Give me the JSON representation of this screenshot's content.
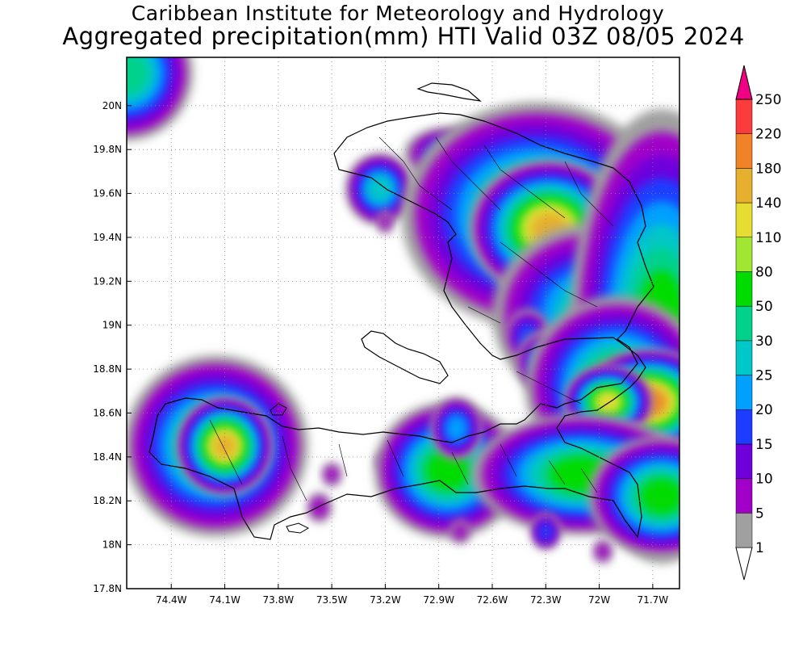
{
  "title": "Caribbean Institute for Meteorology and Hydrology",
  "subtitle": "Aggregated precipitation(mm) HTI Valid 03Z 08/05 2024",
  "map": {
    "lon_range": [
      -74.65,
      -71.55
    ],
    "lat_range": [
      17.8,
      20.22
    ],
    "x_ticks": [
      {
        "value": -74.4,
        "label": "74.4W"
      },
      {
        "value": -74.1,
        "label": "74.1W"
      },
      {
        "value": -73.8,
        "label": "73.8W"
      },
      {
        "value": -73.5,
        "label": "73.5W"
      },
      {
        "value": -73.2,
        "label": "73.2W"
      },
      {
        "value": -72.9,
        "label": "72.9W"
      },
      {
        "value": -72.6,
        "label": "72.6W"
      },
      {
        "value": -72.3,
        "label": "72.3W"
      },
      {
        "value": -72.0,
        "label": "72W"
      },
      {
        "value": -71.7,
        "label": "71.7W"
      }
    ],
    "y_ticks": [
      {
        "value": 17.8,
        "label": "17.8N"
      },
      {
        "value": 18.0,
        "label": "18N"
      },
      {
        "value": 18.2,
        "label": "18.2N"
      },
      {
        "value": 18.4,
        "label": "18.4N"
      },
      {
        "value": 18.6,
        "label": "18.6N"
      },
      {
        "value": 18.8,
        "label": "18.8N"
      },
      {
        "value": 19.0,
        "label": "19N"
      },
      {
        "value": 19.2,
        "label": "19.2N"
      },
      {
        "value": 19.4,
        "label": "19.4N"
      },
      {
        "value": 19.6,
        "label": "19.6N"
      },
      {
        "value": 19.8,
        "label": "19.8N"
      },
      {
        "value": 20.0,
        "label": "20N"
      }
    ],
    "grid": true
  },
  "legend": {
    "levels": [
      {
        "label": "1",
        "color": "#ffffff"
      },
      {
        "label": "5",
        "color": "#a0a0a0"
      },
      {
        "label": "10",
        "color": "#a000c8"
      },
      {
        "label": "15",
        "color": "#6e00dc"
      },
      {
        "label": "20",
        "color": "#1e3cff"
      },
      {
        "label": "25",
        "color": "#00a0ff"
      },
      {
        "label": "30",
        "color": "#00c8c8"
      },
      {
        "label": "50",
        "color": "#00d28c"
      },
      {
        "label": "80",
        "color": "#00dc00"
      },
      {
        "label": "110",
        "color": "#a0e632"
      },
      {
        "label": "140",
        "color": "#e6dc32"
      },
      {
        "label": "180",
        "color": "#e6af2d"
      },
      {
        "label": "220",
        "color": "#f08228"
      },
      {
        "label": "250",
        "color": "#fa3c3c"
      }
    ],
    "top_color": "#f00082"
  },
  "rain_cells": [
    {
      "lon": -74.65,
      "lat": 20.15,
      "rx": 0.12,
      "ry": 0.1,
      "level": 7
    },
    {
      "lon": -73.23,
      "lat": 19.62,
      "rx": 0.07,
      "ry": 0.06,
      "level": 6
    },
    {
      "lon": -73.2,
      "lat": 19.47,
      "rx": 0.03,
      "ry": 0.04,
      "level": 2
    },
    {
      "lon": -72.85,
      "lat": 19.78,
      "rx": 0.12,
      "ry": 0.06,
      "level": 4
    },
    {
      "lon": -72.6,
      "lat": 19.7,
      "rx": 0.12,
      "ry": 0.07,
      "level": 6
    },
    {
      "lon": -72.35,
      "lat": 19.5,
      "rx": 0.22,
      "ry": 0.15,
      "level": 8
    },
    {
      "lon": -72.28,
      "lat": 19.44,
      "rx": 0.1,
      "ry": 0.07,
      "level": 11
    },
    {
      "lon": -71.6,
      "lat": 19.4,
      "rx": 0.1,
      "ry": 0.1,
      "level": 10
    },
    {
      "lon": -71.75,
      "lat": 19.3,
      "rx": 0.06,
      "ry": 0.06,
      "level": 9
    },
    {
      "lon": -72.05,
      "lat": 19.05,
      "rx": 0.2,
      "ry": 0.15,
      "level": 6
    },
    {
      "lon": -72.4,
      "lat": 18.95,
      "rx": 0.06,
      "ry": 0.06,
      "level": 4
    },
    {
      "lon": -72.3,
      "lat": 18.83,
      "rx": 0.07,
      "ry": 0.06,
      "level": 5
    },
    {
      "lon": -71.65,
      "lat": 18.95,
      "rx": 0.15,
      "ry": 0.3,
      "level": 8
    },
    {
      "lon": -71.9,
      "lat": 18.72,
      "rx": 0.15,
      "ry": 0.12,
      "level": 8
    },
    {
      "lon": -71.72,
      "lat": 18.65,
      "rx": 0.08,
      "ry": 0.05,
      "level": 12
    },
    {
      "lon": -71.95,
      "lat": 18.65,
      "rx": 0.06,
      "ry": 0.04,
      "level": 10
    },
    {
      "lon": -74.15,
      "lat": 18.45,
      "rx": 0.15,
      "ry": 0.12,
      "level": 8
    },
    {
      "lon": -74.1,
      "lat": 18.45,
      "rx": 0.06,
      "ry": 0.05,
      "level": 11
    },
    {
      "lon": -73.5,
      "lat": 18.32,
      "rx": 0.04,
      "ry": 0.04,
      "level": 2
    },
    {
      "lon": -73.57,
      "lat": 18.17,
      "rx": 0.05,
      "ry": 0.05,
      "level": 2
    },
    {
      "lon": -73.2,
      "lat": 18.38,
      "rx": 0.04,
      "ry": 0.03,
      "level": 2
    },
    {
      "lon": -72.85,
      "lat": 18.34,
      "rx": 0.12,
      "ry": 0.09,
      "level": 8
    },
    {
      "lon": -72.8,
      "lat": 18.53,
      "rx": 0.06,
      "ry": 0.06,
      "level": 5
    },
    {
      "lon": -72.45,
      "lat": 18.22,
      "rx": 0.04,
      "ry": 0.03,
      "level": 2
    },
    {
      "lon": -72.1,
      "lat": 18.32,
      "rx": 0.18,
      "ry": 0.08,
      "level": 8
    },
    {
      "lon": -71.65,
      "lat": 18.22,
      "rx": 0.12,
      "ry": 0.08,
      "level": 8
    },
    {
      "lon": -72.78,
      "lat": 18.06,
      "rx": 0.04,
      "ry": 0.04,
      "level": 2
    },
    {
      "lon": -72.3,
      "lat": 18.06,
      "rx": 0.04,
      "ry": 0.04,
      "level": 4
    },
    {
      "lon": -71.98,
      "lat": 17.97,
      "rx": 0.04,
      "ry": 0.04,
      "level": 2
    }
  ]
}
